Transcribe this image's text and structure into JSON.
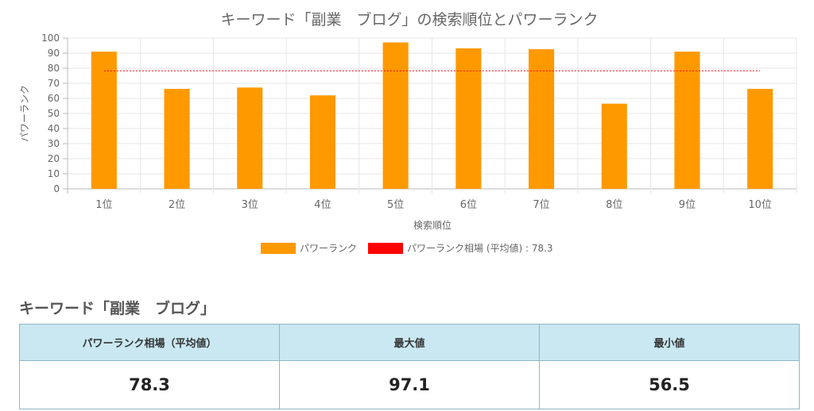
{
  "chart_data": {
    "type": "bar",
    "title": "キーワード「副業　ブログ」の検索順位とパワーランク",
    "xlabel": "検索順位",
    "ylabel": "パワーランク",
    "categories": [
      "1位",
      "2位",
      "3位",
      "4位",
      "5位",
      "6位",
      "7位",
      "8位",
      "9位",
      "10位"
    ],
    "series": [
      {
        "name": "パワーランク",
        "values": [
          91.0,
          66.3,
          67.2,
          62.0,
          97.1,
          93.2,
          92.6,
          56.5,
          91.0,
          66.3
        ],
        "color": "#ff9900"
      }
    ],
    "reference_line": {
      "name": "パワーランク相場 (平均値) : 78.3",
      "value": 78.3,
      "color": "#ff0000",
      "style": "dotted"
    },
    "ylim": [
      0,
      100
    ],
    "yticks": [
      0,
      10,
      20,
      30,
      40,
      50,
      60,
      70,
      80,
      90,
      100
    ],
    "grid": true,
    "legend_position": "bottom"
  },
  "stats": {
    "heading": "キーワード「副業　ブログ」",
    "headers": {
      "avg": "パワーランク相場（平均値）",
      "max": "最大値",
      "min": "最小値"
    },
    "values": {
      "avg": "78.3",
      "max": "97.1",
      "min": "56.5"
    }
  }
}
